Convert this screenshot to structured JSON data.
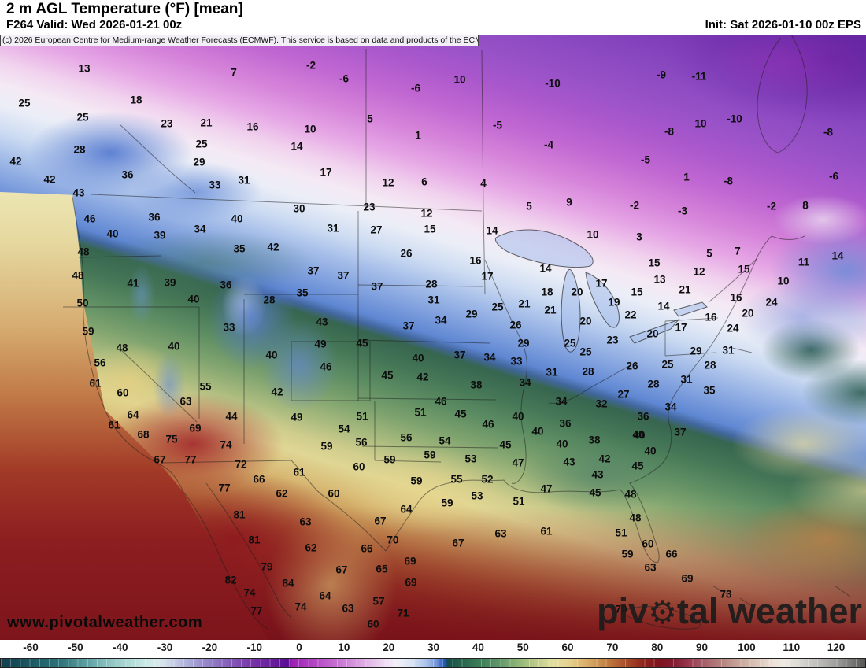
{
  "header": {
    "title": "2 m AGL Temperature (°F) [mean]",
    "valid": "F264 Valid: Wed 2026-01-21 00z",
    "init": "Init: Sat 2026-01-10 00z EPS"
  },
  "copyright_notice": "(c) 2026 European Centre for Medium-range Weather Forecasts (ECMWF). This service is based on data and products of the ECMWF.",
  "watermarks": {
    "url_text": "www.pivotalweather.com",
    "brand_prefix": "piv",
    "brand_suffix": "tal weather",
    "gear_icon": "⚙"
  },
  "colorbar": {
    "unit": "°F",
    "range": [
      -60,
      120
    ],
    "tick_values": [
      -60,
      -50,
      -40,
      -30,
      -20,
      -10,
      0,
      10,
      20,
      30,
      40,
      50,
      60,
      70,
      80,
      90,
      100,
      110,
      120
    ],
    "stops": [
      [
        0,
        "#12404f"
      ],
      [
        2,
        "#174b57"
      ],
      [
        4.4,
        "#20606a"
      ],
      [
        7,
        "#2f757b"
      ],
      [
        9.5,
        "#579a9c"
      ],
      [
        12,
        "#84bdbd"
      ],
      [
        14.5,
        "#aad6d3"
      ],
      [
        16.7,
        "#c9e9e5"
      ],
      [
        18.3,
        "#d7e9ec"
      ],
      [
        19.5,
        "#cdd6e8"
      ],
      [
        21.1,
        "#b4b9dd"
      ],
      [
        23,
        "#9c94ce"
      ],
      [
        25,
        "#8d74c2"
      ],
      [
        27.2,
        "#8151b4"
      ],
      [
        29.5,
        "#7431a6"
      ],
      [
        31.7,
        "#661b9c"
      ],
      [
        33.2,
        "#570d94"
      ],
      [
        33.6,
        "#9c1fb4"
      ],
      [
        35.6,
        "#ae3cc1"
      ],
      [
        38.3,
        "#c267cf"
      ],
      [
        40.8,
        "#d593dd"
      ],
      [
        43,
        "#e5c0ea"
      ],
      [
        44.7,
        "#f0e0f4"
      ],
      [
        45.9,
        "#eff0f8"
      ],
      [
        47.5,
        "#d9e4f5"
      ],
      [
        49.2,
        "#abc3e9"
      ],
      [
        50.4,
        "#7397d8"
      ],
      [
        51,
        "#3a66c6"
      ],
      [
        51.3,
        "#2457be"
      ],
      [
        51.7,
        "#17504a"
      ],
      [
        53.3,
        "#28654f"
      ],
      [
        55.6,
        "#3f7f58"
      ],
      [
        57.8,
        "#62996a"
      ],
      [
        60,
        "#93b77a"
      ],
      [
        62.2,
        "#c2cf8d"
      ],
      [
        63.9,
        "#e2dfa0"
      ],
      [
        65.6,
        "#e5d391"
      ],
      [
        67.8,
        "#d8ae69"
      ],
      [
        70,
        "#c28142"
      ],
      [
        72.2,
        "#aa4f2b"
      ],
      [
        74.4,
        "#8f241d"
      ],
      [
        76.1,
        "#7f1420"
      ],
      [
        77.8,
        "#821b2e"
      ],
      [
        79.4,
        "#96344c"
      ],
      [
        81.1,
        "#a35a66"
      ],
      [
        83.3,
        "#b48280"
      ],
      [
        85.6,
        "#c9a99c"
      ],
      [
        87.8,
        "#ddc9bc"
      ],
      [
        89.4,
        "#ece2d8"
      ],
      [
        90.6,
        "#efeae3"
      ],
      [
        92.2,
        "#dcdad5"
      ],
      [
        94.4,
        "#c0bfbc"
      ],
      [
        96.7,
        "#9e9e9c"
      ],
      [
        98.3,
        "#7b7b79"
      ],
      [
        100,
        "#565654"
      ]
    ]
  },
  "map": {
    "temperature_labels": [
      [
        13,
        107,
        87
      ],
      [
        7,
        297,
        92
      ],
      [
        -2,
        395,
        83
      ],
      [
        -6,
        437,
        100
      ],
      [
        10,
        584,
        101
      ],
      [
        -6,
        528,
        112
      ],
      [
        -10,
        702,
        106
      ],
      [
        -9,
        840,
        95
      ],
      [
        -11,
        888,
        97
      ],
      [
        25,
        31,
        131
      ],
      [
        18,
        173,
        127
      ],
      [
        23,
        212,
        157
      ],
      [
        21,
        262,
        156
      ],
      [
        16,
        321,
        161
      ],
      [
        5,
        470,
        151
      ],
      [
        10,
        394,
        164
      ],
      [
        -5,
        632,
        159
      ],
      [
        1,
        531,
        172
      ],
      [
        -4,
        697,
        184
      ],
      [
        -10,
        933,
        151
      ],
      [
        10,
        890,
        157
      ],
      [
        -8,
        850,
        167
      ],
      [
        -8,
        1052,
        168
      ],
      [
        25,
        105,
        149
      ],
      [
        25,
        256,
        183
      ],
      [
        28,
        101,
        190
      ],
      [
        29,
        253,
        206
      ],
      [
        14,
        377,
        186
      ],
      [
        17,
        414,
        219
      ],
      [
        -5,
        820,
        203
      ],
      [
        1,
        872,
        225
      ],
      [
        -8,
        925,
        230
      ],
      [
        -6,
        1059,
        224
      ],
      [
        36,
        162,
        222
      ],
      [
        31,
        310,
        229
      ],
      [
        33,
        273,
        235
      ],
      [
        12,
        493,
        232
      ],
      [
        6,
        539,
        231
      ],
      [
        4,
        614,
        233
      ],
      [
        42,
        20,
        205
      ],
      [
        42,
        63,
        228
      ],
      [
        43,
        100,
        245
      ],
      [
        30,
        380,
        265
      ],
      [
        23,
        469,
        263
      ],
      [
        12,
        542,
        271
      ],
      [
        9,
        723,
        257
      ],
      [
        5,
        672,
        262
      ],
      [
        -2,
        806,
        261
      ],
      [
        -3,
        867,
        268
      ],
      [
        -2,
        980,
        262
      ],
      [
        8,
        1023,
        261
      ],
      [
        46,
        114,
        278
      ],
      [
        40,
        143,
        297
      ],
      [
        36,
        196,
        276
      ],
      [
        39,
        203,
        299
      ],
      [
        34,
        254,
        291
      ],
      [
        40,
        301,
        278
      ],
      [
        31,
        423,
        290
      ],
      [
        27,
        478,
        292
      ],
      [
        15,
        546,
        291
      ],
      [
        10,
        753,
        298
      ],
      [
        3,
        812,
        301
      ],
      [
        5,
        901,
        322
      ],
      [
        7,
        937,
        319
      ],
      [
        14,
        625,
        293
      ],
      [
        26,
        516,
        322
      ],
      [
        16,
        604,
        331
      ],
      [
        35,
        304,
        316
      ],
      [
        42,
        347,
        314
      ],
      [
        48,
        106,
        320
      ],
      [
        11,
        1021,
        333
      ],
      [
        14,
        1064,
        325
      ],
      [
        15,
        831,
        334
      ],
      [
        48,
        99,
        350
      ],
      [
        41,
        169,
        360
      ],
      [
        39,
        216,
        359
      ],
      [
        36,
        287,
        362
      ],
      [
        37,
        398,
        344
      ],
      [
        37,
        436,
        350
      ],
      [
        28,
        548,
        361
      ],
      [
        17,
        619,
        351
      ],
      [
        14,
        693,
        341
      ],
      [
        12,
        888,
        345
      ],
      [
        15,
        945,
        342
      ],
      [
        13,
        838,
        355
      ],
      [
        10,
        995,
        357
      ],
      [
        17,
        764,
        360
      ],
      [
        40,
        246,
        380
      ],
      [
        28,
        342,
        381
      ],
      [
        35,
        384,
        372
      ],
      [
        37,
        479,
        364
      ],
      [
        31,
        551,
        381
      ],
      [
        18,
        695,
        371
      ],
      [
        20,
        733,
        371
      ],
      [
        21,
        870,
        368
      ],
      [
        15,
        809,
        371
      ],
      [
        16,
        935,
        378
      ],
      [
        24,
        980,
        384
      ],
      [
        50,
        105,
        385
      ],
      [
        43,
        409,
        409
      ],
      [
        34,
        560,
        407
      ],
      [
        29,
        599,
        399
      ],
      [
        25,
        632,
        390
      ],
      [
        21,
        666,
        386
      ],
      [
        21,
        699,
        394
      ],
      [
        19,
        780,
        384
      ],
      [
        14,
        843,
        389
      ],
      [
        22,
        801,
        400
      ],
      [
        20,
        950,
        398
      ],
      [
        16,
        903,
        403
      ],
      [
        20,
        744,
        408
      ],
      [
        59,
        112,
        421
      ],
      [
        33,
        291,
        416
      ],
      [
        37,
        519,
        414
      ],
      [
        26,
        655,
        413
      ],
      [
        17,
        865,
        416
      ],
      [
        20,
        829,
        424
      ],
      [
        24,
        931,
        417
      ],
      [
        48,
        155,
        442
      ],
      [
        40,
        221,
        440
      ],
      [
        40,
        345,
        451
      ],
      [
        45,
        460,
        436
      ],
      [
        49,
        407,
        437
      ],
      [
        29,
        665,
        436
      ],
      [
        25,
        724,
        436
      ],
      [
        23,
        778,
        432
      ],
      [
        25,
        744,
        447
      ],
      [
        56,
        127,
        461
      ],
      [
        46,
        414,
        466
      ],
      [
        37,
        584,
        451
      ],
      [
        34,
        622,
        454
      ],
      [
        33,
        656,
        459
      ],
      [
        40,
        531,
        455
      ],
      [
        29,
        884,
        446
      ],
      [
        31,
        925,
        445
      ],
      [
        61,
        121,
        487
      ],
      [
        60,
        156,
        499
      ],
      [
        55,
        261,
        491
      ],
      [
        45,
        492,
        477
      ],
      [
        42,
        537,
        479
      ],
      [
        31,
        701,
        473
      ],
      [
        34,
        667,
        486
      ],
      [
        38,
        605,
        489
      ],
      [
        28,
        747,
        472
      ],
      [
        26,
        803,
        465
      ],
      [
        25,
        848,
        463
      ],
      [
        28,
        902,
        464
      ],
      [
        63,
        236,
        510
      ],
      [
        42,
        352,
        498
      ],
      [
        34,
        713,
        510
      ],
      [
        46,
        560,
        510
      ],
      [
        31,
        872,
        482
      ],
      [
        28,
        830,
        488
      ],
      [
        35,
        901,
        496
      ],
      [
        64,
        169,
        527
      ],
      [
        44,
        294,
        529
      ],
      [
        51,
        534,
        524
      ],
      [
        45,
        585,
        526
      ],
      [
        51,
        460,
        529
      ],
      [
        49,
        377,
        530
      ],
      [
        46,
        620,
        539
      ],
      [
        40,
        658,
        529
      ],
      [
        36,
        718,
        538
      ],
      [
        27,
        792,
        501
      ],
      [
        32,
        764,
        513
      ],
      [
        34,
        852,
        517
      ],
      [
        61,
        145,
        540
      ],
      [
        68,
        182,
        552
      ],
      [
        69,
        248,
        544
      ],
      [
        54,
        437,
        545
      ],
      [
        56,
        516,
        556
      ],
      [
        40,
        683,
        548
      ],
      [
        36,
        817,
        529
      ],
      [
        40,
        811,
        552
      ],
      [
        37,
        864,
        549
      ],
      [
        75,
        218,
        558
      ],
      [
        74,
        287,
        565
      ],
      [
        54,
        565,
        560
      ],
      [
        38,
        755,
        559
      ],
      [
        40,
        812,
        553
      ],
      [
        67,
        203,
        584
      ],
      [
        77,
        242,
        584
      ],
      [
        72,
        306,
        590
      ],
      [
        61,
        380,
        600
      ],
      [
        59,
        415,
        567
      ],
      [
        56,
        459,
        562
      ],
      [
        59,
        495,
        584
      ],
      [
        53,
        598,
        583
      ],
      [
        45,
        642,
        565
      ],
      [
        40,
        714,
        564
      ],
      [
        59,
        546,
        578
      ],
      [
        66,
        329,
        609
      ],
      [
        62,
        358,
        627
      ],
      [
        60,
        424,
        627
      ],
      [
        60,
        456,
        593
      ],
      [
        55,
        580,
        609
      ],
      [
        52,
        619,
        609
      ],
      [
        47,
        658,
        588
      ],
      [
        43,
        723,
        587
      ],
      [
        42,
        768,
        583
      ],
      [
        45,
        810,
        592
      ],
      [
        40,
        826,
        573
      ],
      [
        77,
        285,
        620
      ],
      [
        63,
        388,
        663
      ],
      [
        53,
        606,
        630
      ],
      [
        59,
        529,
        611
      ],
      [
        51,
        659,
        637
      ],
      [
        47,
        694,
        621
      ],
      [
        45,
        756,
        626
      ],
      [
        48,
        801,
        628
      ],
      [
        43,
        759,
        603
      ],
      [
        81,
        304,
        654
      ],
      [
        64,
        516,
        647
      ],
      [
        59,
        568,
        639
      ],
      [
        63,
        636,
        678
      ],
      [
        61,
        694,
        675
      ],
      [
        51,
        789,
        677
      ],
      [
        48,
        807,
        658
      ],
      [
        81,
        323,
        686
      ],
      [
        62,
        395,
        696
      ],
      [
        67,
        483,
        662
      ],
      [
        70,
        499,
        686
      ],
      [
        66,
        466,
        697
      ],
      [
        67,
        582,
        690
      ],
      [
        60,
        823,
        691
      ],
      [
        59,
        797,
        704
      ],
      [
        66,
        853,
        704
      ],
      [
        79,
        339,
        720
      ],
      [
        67,
        434,
        724
      ],
      [
        65,
        485,
        723
      ],
      [
        69,
        521,
        713
      ],
      [
        63,
        826,
        721
      ],
      [
        69,
        873,
        735
      ],
      [
        82,
        293,
        737
      ],
      [
        84,
        366,
        741
      ],
      [
        69,
        522,
        740
      ],
      [
        73,
        922,
        755
      ],
      [
        74,
        317,
        753
      ],
      [
        64,
        413,
        757
      ],
      [
        57,
        481,
        764
      ],
      [
        71,
        512,
        779
      ],
      [
        63,
        442,
        773
      ],
      [
        74,
        382,
        771
      ],
      [
        77,
        326,
        776
      ],
      [
        60,
        474,
        793
      ],
      [
        70,
        789,
        774
      ]
    ]
  }
}
